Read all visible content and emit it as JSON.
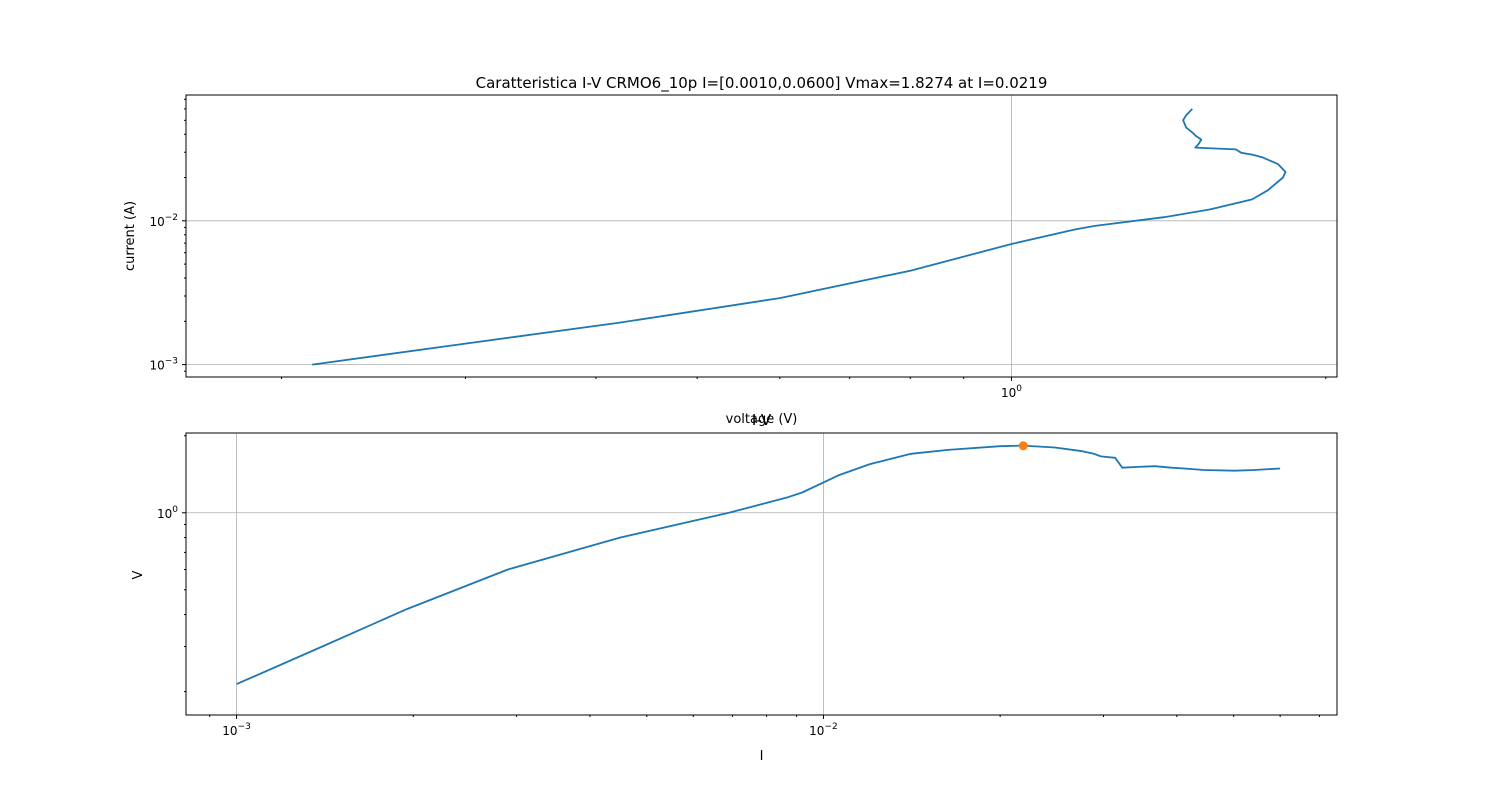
{
  "chart_data": [
    {
      "type": "line",
      "title": "Caratteristica I-V CRMO6_10p I=[0.0010,0.0600] Vmax=1.8274 at I=0.0219",
      "xlabel": "voltage (V)",
      "ylabel": "current (A)",
      "xscale": "log",
      "yscale": "log",
      "xlim": [
        0.162,
        2.05
      ],
      "ylim": [
        0.00082,
        0.075
      ],
      "grid": true,
      "x_major_ticks": [
        {
          "value": 1,
          "base": "10",
          "exp": "0"
        }
      ],
      "y_major_ticks": [
        {
          "value": 0.001,
          "base": "10",
          "exp": "−3"
        },
        {
          "value": 0.01,
          "base": "10",
          "exp": "−2"
        }
      ],
      "color": "#1f77b4",
      "series": [
        {
          "points": [
            [
              0.214,
              0.001
            ],
            [
              0.3,
              0.0014
            ],
            [
              0.42,
              0.00195
            ],
            [
              0.6,
              0.0029
            ],
            [
              0.8,
              0.0045
            ],
            [
              1.0,
              0.0069
            ],
            [
              1.15,
              0.0087
            ],
            [
              1.2,
              0.0092
            ],
            [
              1.4,
              0.0106
            ],
            [
              1.55,
              0.012
            ],
            [
              1.7,
              0.0141
            ],
            [
              1.76,
              0.0163
            ],
            [
              1.82,
              0.02
            ],
            [
              1.83,
              0.0219
            ],
            [
              1.8,
              0.0248
            ],
            [
              1.74,
              0.0276
            ],
            [
              1.7,
              0.0289
            ],
            [
              1.66,
              0.0297
            ],
            [
              1.64,
              0.0314
            ],
            [
              1.5,
              0.0323
            ],
            [
              1.51,
              0.034
            ],
            [
              1.52,
              0.0367
            ],
            [
              1.5,
              0.0392
            ],
            [
              1.49,
              0.0412
            ],
            [
              1.47,
              0.0445
            ],
            [
              1.46,
              0.0502
            ],
            [
              1.47,
              0.0542
            ],
            [
              1.49,
              0.06
            ]
          ]
        }
      ]
    },
    {
      "type": "line",
      "title": "I-V",
      "xlabel": "I",
      "ylabel": "V",
      "xscale": "log",
      "yscale": "log",
      "xlim": [
        0.00082,
        0.075
      ],
      "ylim": [
        0.162,
        2.05
      ],
      "grid": true,
      "x_major_ticks": [
        {
          "value": 0.001,
          "base": "10",
          "exp": "−3"
        },
        {
          "value": 0.01,
          "base": "10",
          "exp": "−2"
        }
      ],
      "y_major_ticks": [
        {
          "value": 1,
          "base": "10",
          "exp": "0"
        }
      ],
      "color": "#1f77b4",
      "series": [
        {
          "points": [
            [
              0.001,
              0.214
            ],
            [
              0.0014,
              0.3
            ],
            [
              0.00195,
              0.42
            ],
            [
              0.0029,
              0.6
            ],
            [
              0.0045,
              0.8
            ],
            [
              0.0069,
              1.0
            ],
            [
              0.0087,
              1.15
            ],
            [
              0.0092,
              1.2
            ],
            [
              0.0106,
              1.4
            ],
            [
              0.012,
              1.55
            ],
            [
              0.0141,
              1.7
            ],
            [
              0.0163,
              1.76
            ],
            [
              0.02,
              1.82
            ],
            [
              0.0219,
              1.83
            ],
            [
              0.0248,
              1.8
            ],
            [
              0.0276,
              1.74
            ],
            [
              0.0289,
              1.7
            ],
            [
              0.0297,
              1.66
            ],
            [
              0.0314,
              1.64
            ],
            [
              0.0323,
              1.5
            ],
            [
              0.034,
              1.51
            ],
            [
              0.0367,
              1.52
            ],
            [
              0.0392,
              1.5
            ],
            [
              0.0412,
              1.49
            ],
            [
              0.0445,
              1.47
            ],
            [
              0.0502,
              1.46
            ],
            [
              0.0542,
              1.47
            ],
            [
              0.06,
              1.49
            ]
          ]
        }
      ],
      "marker": {
        "x": 0.0219,
        "y": 1.8274,
        "color": "#ff7f0e"
      }
    }
  ]
}
